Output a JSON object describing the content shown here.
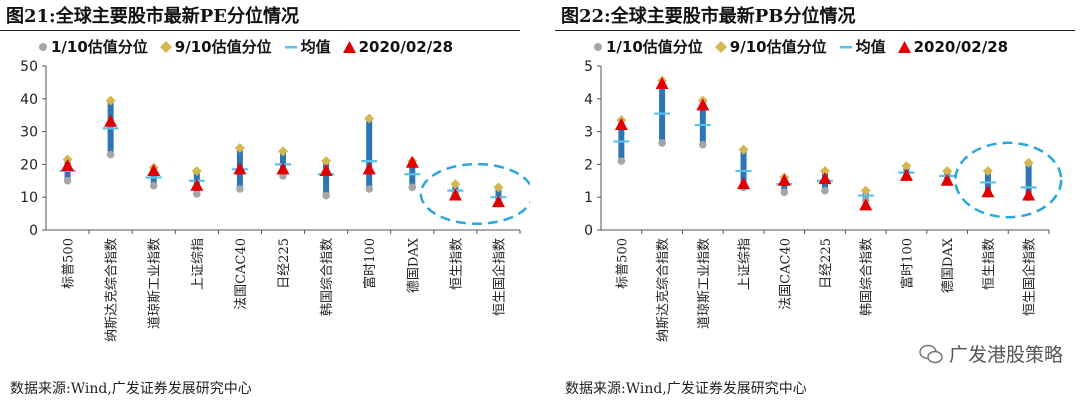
{
  "colors": {
    "p10": "#a6a6a6",
    "p90": "#d6b74f",
    "range": "#2e75b6",
    "mean": "#5bc0e8",
    "current": "#e00000",
    "circle": "#2aa7dc"
  },
  "legend": {
    "p10": "1/10估值分位",
    "p90": "9/10估值分位",
    "mean": "均值",
    "current": "2020/02/28"
  },
  "panels": [
    {
      "id": "left",
      "title": "图21:全球主要股市最新PE分位情况",
      "source": "数据来源:Wind,广发证券发展研究中心",
      "chart_data": {
        "type": "bar",
        "title": "全球主要股市最新PE分位情况",
        "categories": [
          "标普500",
          "纳斯达克综合指数",
          "道琼斯工业指数",
          "上证综指",
          "法国CAC40",
          "日经225",
          "韩国综合指数",
          "富时100",
          "德国DAX",
          "恒生指数",
          "恒生国企指数"
        ],
        "series": [
          {
            "name": "1/10估值分位",
            "values": [
              15,
              23,
              13.5,
              11,
              12.5,
              16.5,
              10.5,
              12.5,
              13,
              11,
              8
            ]
          },
          {
            "name": "9/10估值分位",
            "values": [
              21.5,
              39.5,
              19,
              18,
              25,
              24,
              21,
              34,
              21,
              14,
              13
            ]
          },
          {
            "name": "均值",
            "values": [
              18,
              31,
              16,
              15,
              18.5,
              20,
              17,
              21,
              17,
              12,
              10
            ]
          },
          {
            "name": "2020/02/28",
            "values": [
              19.5,
              33,
              18,
              13.5,
              18.5,
              18.5,
              18,
              18.5,
              20.5,
              10.5,
              8.5
            ]
          }
        ],
        "yticks": [
          "0",
          "10",
          "20",
          "30",
          "40",
          "50"
        ],
        "ylim": [
          0,
          50
        ],
        "highlight_categories": [
          "恒生指数",
          "恒生国企指数"
        ],
        "legend_position": "top"
      }
    },
    {
      "id": "right",
      "title": "图22:全球主要股市最新PB分位情况",
      "source": "数据来源:Wind,广发证券发展研究中心",
      "watermark": "广发港股策略",
      "chart_data": {
        "type": "bar",
        "title": "全球主要股市最新PB分位情况",
        "categories": [
          "标普500",
          "纳斯达克综合指数",
          "道琼斯工业指数",
          "上证综指",
          "法国CAC40",
          "日经225",
          "韩国综合指数",
          "富时100",
          "德国DAX",
          "恒生指数",
          "恒生国企指数"
        ],
        "series": [
          {
            "name": "1/10估值分位",
            "values": [
              2.1,
              2.65,
              2.6,
              1.3,
              1.15,
              1.2,
              0.9,
              1.6,
              1.5,
              1.1,
              1.0
            ]
          },
          {
            "name": "9/10估值分位",
            "values": [
              3.35,
              4.55,
              3.95,
              2.45,
              1.6,
              1.8,
              1.2,
              1.95,
              1.8,
              1.8,
              2.05
            ]
          },
          {
            "name": "均值",
            "values": [
              2.7,
              3.55,
              3.2,
              1.8,
              1.4,
              1.5,
              1.05,
              1.75,
              1.65,
              1.45,
              1.3
            ]
          },
          {
            "name": "2020/02/28",
            "values": [
              3.2,
              4.45,
              3.8,
              1.4,
              1.5,
              1.55,
              0.75,
              1.65,
              1.5,
              1.15,
              1.05
            ]
          }
        ],
        "yticks": [
          "0",
          "1",
          "2",
          "3",
          "4",
          "5"
        ],
        "ylim": [
          0,
          5
        ],
        "highlight_categories": [
          "恒生指数",
          "恒生国企指数"
        ],
        "legend_position": "top"
      }
    }
  ]
}
